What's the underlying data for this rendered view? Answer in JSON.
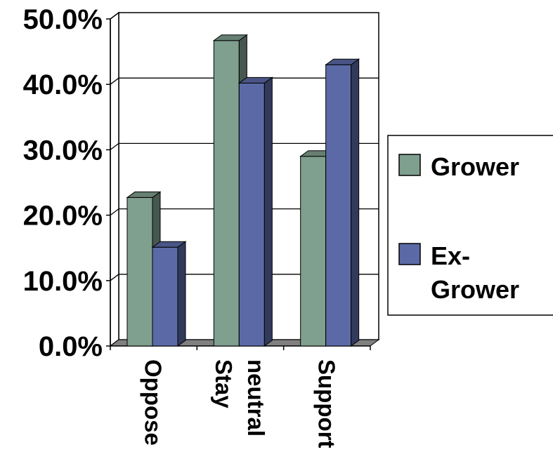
{
  "chart_data": {
    "type": "bar",
    "categories": [
      "Oppose",
      "Stay neutral",
      "Support"
    ],
    "category_lines": [
      [
        "Oppose"
      ],
      [
        "Stay",
        "neutral"
      ],
      [
        "Support"
      ]
    ],
    "series": [
      {
        "name": "Grower",
        "values": [
          22.7,
          46.7,
          29.0
        ],
        "color": "#7f9f8f"
      },
      {
        "name": "Ex-Grower",
        "values": [
          15.1,
          40.2,
          43.0
        ],
        "color": "#5b6aa6"
      }
    ],
    "legend_lines": [
      [
        "Grower"
      ],
      [
        "Ex-",
        "Grower"
      ]
    ],
    "ylim": [
      0,
      50
    ],
    "yticks": [
      "0.0%",
      "10.0%",
      "20.0%",
      "30.0%",
      "40.0%",
      "50.0%"
    ],
    "ytick_values": [
      0,
      10,
      20,
      30,
      40,
      50
    ],
    "title": "",
    "xlabel": "",
    "ylabel": "",
    "grid": true,
    "legend_position": "right",
    "style": "3d-clustered-column"
  }
}
